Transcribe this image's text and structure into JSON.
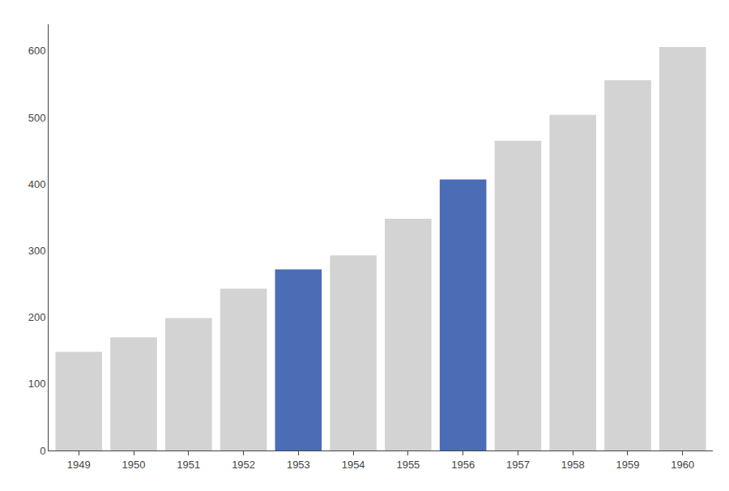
{
  "chart_data": {
    "type": "bar",
    "categories": [
      "1949",
      "1950",
      "1951",
      "1952",
      "1953",
      "1954",
      "1955",
      "1956",
      "1957",
      "1958",
      "1959",
      "1960"
    ],
    "values": [
      148,
      170,
      199,
      243,
      272,
      293,
      348,
      407,
      465,
      504,
      556,
      606
    ],
    "colors": [
      "#d3d3d3",
      "#d3d3d3",
      "#d3d3d3",
      "#d3d3d3",
      "#4a6db5",
      "#d3d3d3",
      "#d3d3d3",
      "#4a6db5",
      "#d3d3d3",
      "#d3d3d3",
      "#d3d3d3",
      "#d3d3d3"
    ],
    "ylim": [
      0,
      640
    ],
    "yticks": [
      0,
      100,
      200,
      300,
      400,
      500,
      600
    ],
    "grid": false
  }
}
